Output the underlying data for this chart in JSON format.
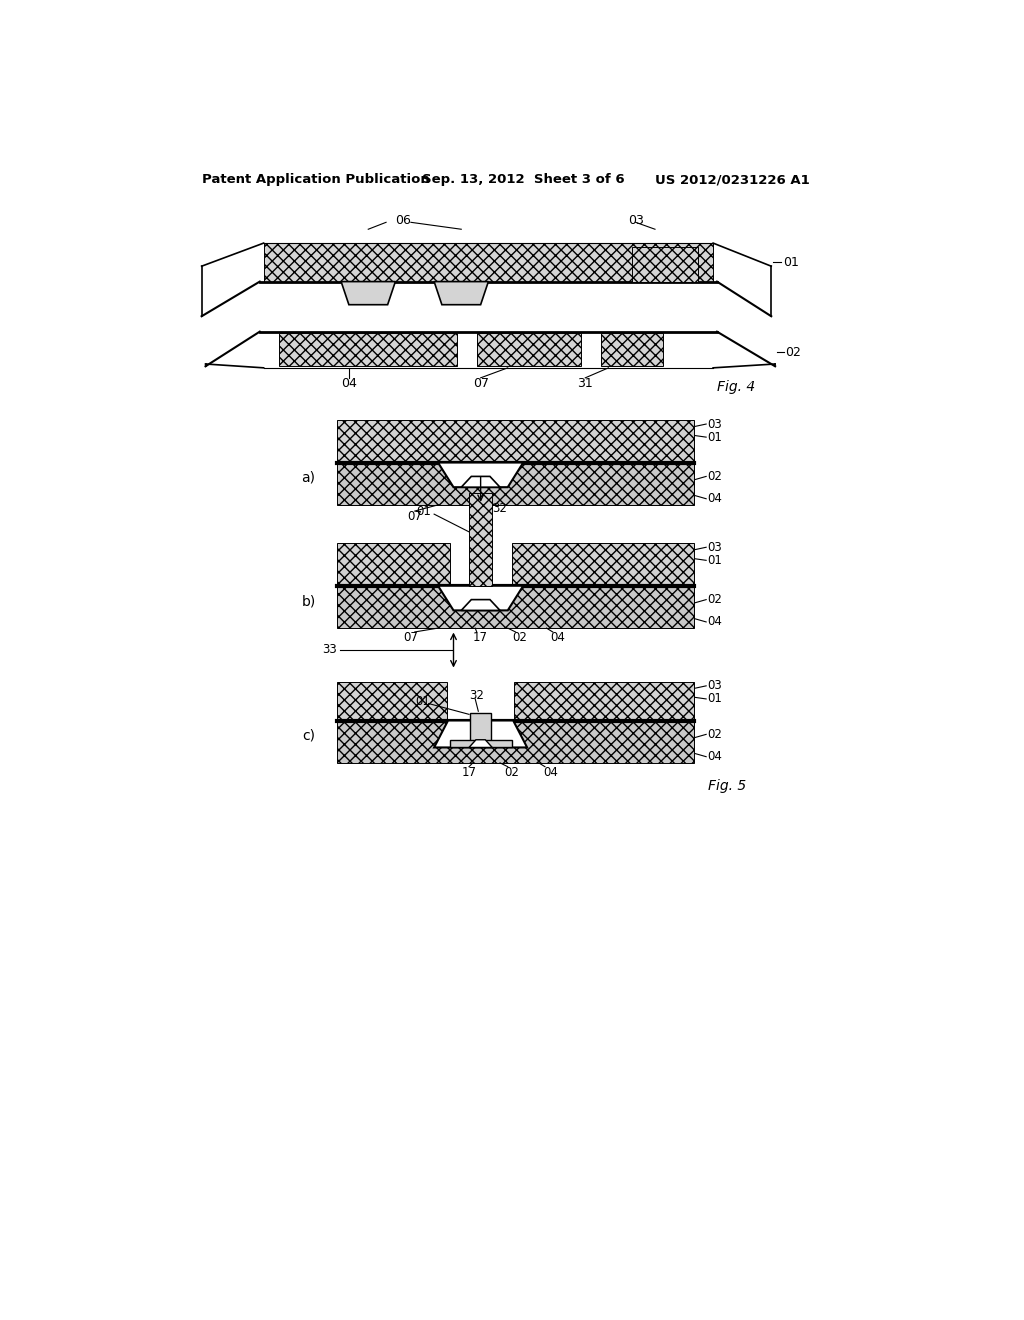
{
  "bg_color": "#ffffff",
  "header_left": "Patent Application Publication",
  "header_mid": "Sep. 13, 2012  Sheet 3 of 6",
  "header_right": "US 2012/0231226 A1",
  "fig4_label": "Fig. 4",
  "fig5_label": "Fig. 5",
  "hatch_light": "xxxx",
  "hatch_med": "////",
  "fc_light": "#d8d8d8",
  "fc_med": "#c0c0c0",
  "ec": "#000000"
}
